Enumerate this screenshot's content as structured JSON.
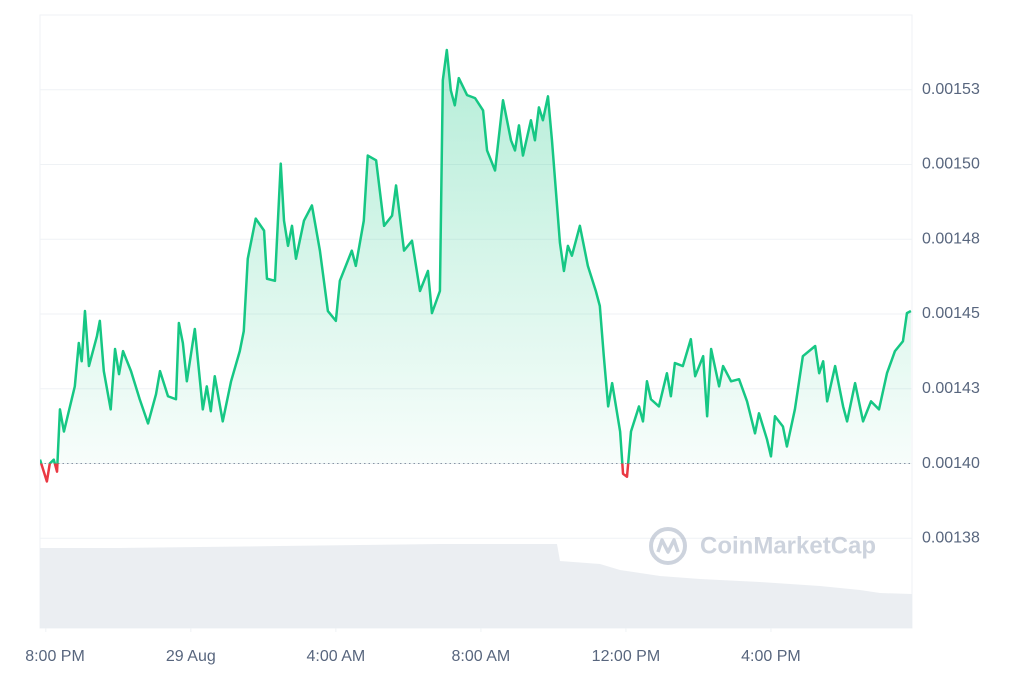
{
  "chart_data": {
    "type": "line",
    "x": [
      -0.16,
      0.03,
      0.11,
      0.22,
      0.31,
      0.39,
      0.5,
      0.8,
      0.91,
      0.99,
      1.08,
      1.19,
      1.41,
      1.49,
      1.6,
      1.79,
      1.91,
      2.02,
      2.13,
      2.35,
      2.59,
      2.82,
      3.04,
      3.15,
      3.37,
      3.59,
      3.67,
      3.78,
      3.89,
      4.11,
      4.33,
      4.44,
      4.55,
      4.66,
      4.88,
      5.11,
      5.35,
      5.46,
      5.57,
      5.79,
      6.02,
      6.1,
      6.32,
      6.48,
      6.57,
      6.68,
      6.79,
      6.9,
      7.12,
      7.34,
      7.56,
      7.78,
      8.0,
      8.11,
      8.44,
      8.55,
      8.77,
      8.88,
      9.11,
      9.33,
      9.55,
      9.66,
      9.88,
      10.1,
      10.32,
      10.54,
      10.65,
      10.87,
      10.95,
      11.06,
      11.17,
      11.28,
      11.39,
      11.62,
      11.84,
      12.06,
      12.17,
      12.39,
      12.61,
      12.83,
      12.94,
      13.05,
      13.16,
      13.38,
      13.49,
      13.6,
      13.71,
      13.85,
      13.96,
      14.18,
      14.29,
      14.4,
      14.51,
      14.73,
      14.95,
      15.17,
      15.28,
      15.39,
      15.51,
      15.62,
      15.84,
      15.92,
      16.03,
      16.14,
      16.36,
      16.47,
      16.58,
      16.69,
      16.91,
      17.13,
      17.24,
      17.35,
      17.57,
      17.79,
      17.91,
      18.13,
      18.24,
      18.35,
      18.57,
      18.68,
      18.9,
      19.12,
      19.34,
      19.56,
      19.67,
      19.89,
      20.0,
      20.11,
      20.33,
      20.44,
      20.66,
      20.88,
      21.22,
      21.33,
      21.44,
      21.55,
      21.77,
      21.99,
      22.1,
      22.32,
      22.54,
      22.76,
      22.98,
      23.2,
      23.42,
      23.64,
      23.75,
      23.86
    ],
    "series": [
      {
        "color": "#16c784",
        "values": [
          0.0014013,
          0.001394,
          0.0014,
          0.0014013,
          0.0013973,
          0.0014181,
          0.0014107,
          0.0014258,
          0.0014403,
          0.0014342,
          0.001451,
          0.0014326,
          0.0014426,
          0.0014477,
          0.0014309,
          0.0014181,
          0.0014383,
          0.0014299,
          0.0014376,
          0.0014309,
          0.0014215,
          0.0014134,
          0.0014232,
          0.0014309,
          0.0014225,
          0.0014215,
          0.001447,
          0.0014403,
          0.0014275,
          0.001445,
          0.0014181,
          0.0014258,
          0.0014175,
          0.0014292,
          0.0014141,
          0.0014275,
          0.0014376,
          0.0014443,
          0.0014685,
          0.0014819,
          0.0014779,
          0.0014618,
          0.0014611,
          0.0015003,
          0.0014812,
          0.0014728,
          0.0014795,
          0.0014685,
          0.0014812,
          0.0014863,
          0.0014712,
          0.001451,
          0.0014477,
          0.0014611,
          0.0014712,
          0.0014661,
          0.0014812,
          0.001503,
          0.0015014,
          0.0014795,
          0.0014829,
          0.001493,
          0.0014712,
          0.0014745,
          0.0014577,
          0.0014644,
          0.0014503,
          0.0014577,
          0.0015282,
          0.0015383,
          0.0015248,
          0.0015198,
          0.0015289,
          0.0015232,
          0.0015222,
          0.0015181,
          0.0015047,
          0.001498,
          0.0015215,
          0.0015081,
          0.0015047,
          0.0015131,
          0.001503,
          0.0015148,
          0.0015081,
          0.0015191,
          0.0015148,
          0.0015228,
          0.0015081,
          0.0014738,
          0.0014644,
          0.0014728,
          0.0014695,
          0.0014795,
          0.0014661,
          0.0014577,
          0.0014527,
          0.0014359,
          0.0014191,
          0.0014269,
          0.0014107,
          0.0013966,
          0.0013956,
          0.0014107,
          0.0014191,
          0.0014141,
          0.0014275,
          0.0014215,
          0.0014191,
          0.0014302,
          0.0014225,
          0.0014336,
          0.0014326,
          0.0014416,
          0.0014292,
          0.0014359,
          0.0014158,
          0.0014383,
          0.0014258,
          0.0014326,
          0.0014275,
          0.0014282,
          0.0014208,
          0.0014101,
          0.0014168,
          0.0014081,
          0.0014024,
          0.0014158,
          0.0014124,
          0.0014057,
          0.0014181,
          0.0014359,
          0.0014393,
          0.0014302,
          0.0014342,
          0.0014208,
          0.0014326,
          0.0014191,
          0.0014141,
          0.0014269,
          0.0014141,
          0.0014208,
          0.0014181,
          0.0014302,
          0.0014376,
          0.0014409,
          0.0014503,
          0.001451
        ]
      }
    ],
    "down_color": "#ea3943",
    "baseline": 0.0014,
    "xlim": [
      -0.16,
      23.89
    ],
    "ylim": [
      0.001345,
      0.00155
    ],
    "xticks": [
      {
        "value": 0,
        "label": "8:00 PM"
      },
      {
        "value": 4,
        "label": "29 Aug"
      },
      {
        "value": 8,
        "label": "4:00 AM"
      },
      {
        "value": 12,
        "label": "8:00 AM"
      },
      {
        "value": 16,
        "label": "12:00 PM"
      },
      {
        "value": 20,
        "label": "4:00 PM"
      }
    ],
    "yticks": [
      {
        "value": 0.001525,
        "label": "0.00153"
      },
      {
        "value": 0.0015,
        "label": "0.00150"
      },
      {
        "value": 0.001475,
        "label": "0.00148"
      },
      {
        "value": 0.00145,
        "label": "0.00145"
      },
      {
        "value": 0.001425,
        "label": "0.00143"
      },
      {
        "value": 0.0014,
        "label": "0.00140"
      },
      {
        "value": 0.001375,
        "label": "0.00138"
      }
    ],
    "grid": true,
    "watermark": "CoinMarketCap"
  }
}
